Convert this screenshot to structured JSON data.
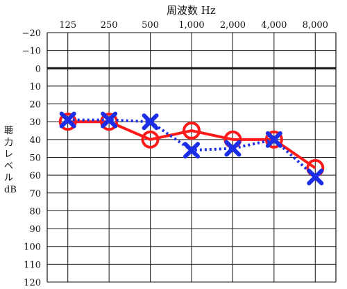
{
  "chart_data": {
    "type": "line",
    "title": "周波数 Hz",
    "ylabel": "聴力レベル dB",
    "x_categories": [
      "125",
      "250",
      "500",
      "1,000",
      "2,000",
      "4,000",
      "8,000"
    ],
    "y_ticks": [
      "−20",
      "−10",
      "0",
      "10",
      "20",
      "30",
      "40",
      "50",
      "60",
      "70",
      "80",
      "90",
      "100",
      "110",
      "120"
    ],
    "ylim": [
      -20,
      120
    ],
    "y_inverted": true,
    "reference_line_y": 0,
    "grid": true,
    "series": [
      {
        "marker": "circle",
        "line_style": "solid",
        "color": "#ff1a1a",
        "values": [
          30,
          30,
          40,
          35,
          40,
          40,
          56
        ]
      },
      {
        "marker": "cross",
        "line_style": "dotted",
        "color": "#1b2ee6",
        "values": [
          29,
          29,
          30,
          46,
          45,
          40,
          61
        ]
      }
    ]
  }
}
